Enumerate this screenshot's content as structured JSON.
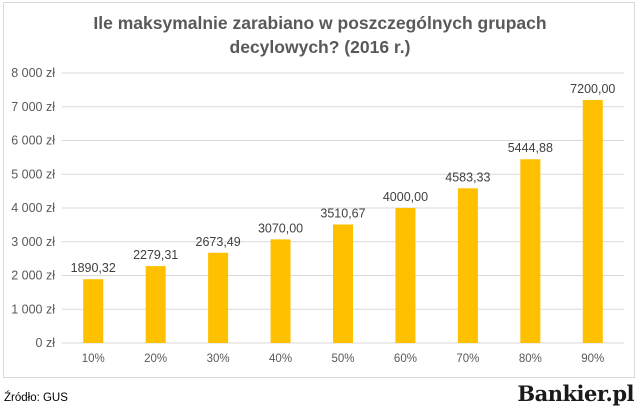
{
  "source": "Źródło: GUS",
  "brand": "Bankier.pl",
  "chart_data": {
    "type": "bar",
    "title_lines": [
      "Ile maksymalnie zarabiano w poszczególnych grupach",
      "decylowych? (2016 r.)"
    ],
    "categories": [
      "10%",
      "20%",
      "30%",
      "40%",
      "50%",
      "60%",
      "70%",
      "80%",
      "90%"
    ],
    "values": [
      1890.32,
      2279.31,
      2673.49,
      3070.0,
      3510.67,
      4000.0,
      4583.33,
      5444.88,
      7200.0
    ],
    "data_labels": [
      "1890,32",
      "2279,31",
      "2673,49",
      "3070,00",
      "3510,67",
      "4000,00",
      "4583,33",
      "5444,88",
      "7200,00"
    ],
    "y_ticks": [
      0,
      1000,
      2000,
      3000,
      4000,
      5000,
      6000,
      7000,
      8000
    ],
    "y_tick_labels": [
      "0 zł",
      "1 000 zł",
      "2 000 zł",
      "3 000 zł",
      "4 000 zł",
      "5 000 zł",
      "6 000 zł",
      "7 000 zł",
      "8 000 zł"
    ],
    "ylim": [
      0,
      8000
    ],
    "xlabel": "",
    "ylabel": "",
    "grid": true,
    "bar_color": "#FFC000",
    "gridline_color": "#d9d9d9"
  }
}
